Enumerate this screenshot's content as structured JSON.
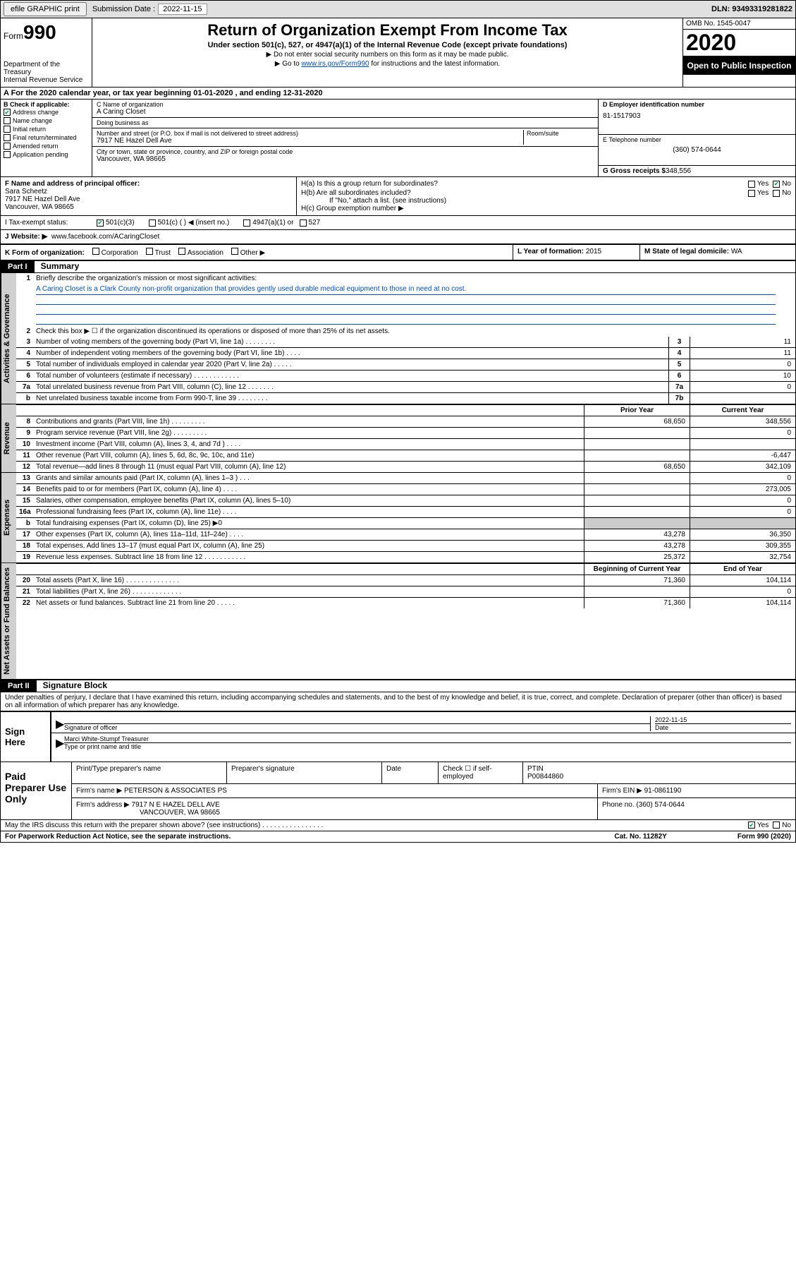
{
  "topbar": {
    "efile": "efile GRAPHIC print",
    "sub_label": "Submission Date :",
    "sub_date": "2022-11-15",
    "dln": "DLN: 93493319281822"
  },
  "header": {
    "form_word": "Form",
    "form_num": "990",
    "dept": "Department of the Treasury\nInternal Revenue Service",
    "title": "Return of Organization Exempt From Income Tax",
    "subtitle": "Under section 501(c), 527, or 4947(a)(1) of the Internal Revenue Code (except private foundations)",
    "instr1": "▶ Do not enter social security numbers on this form as it may be made public.",
    "instr2_pre": "▶ Go to ",
    "instr2_link": "www.irs.gov/Form990",
    "instr2_post": " for instructions and the latest information.",
    "omb": "OMB No. 1545-0047",
    "year": "2020",
    "inspect": "Open to Public Inspection"
  },
  "period": {
    "text_pre": "A For the 2020 calendar year, or tax year beginning ",
    "begin": "01-01-2020",
    "mid": " , and ending ",
    "end": "12-31-2020"
  },
  "section_b": {
    "header": "B Check if applicable:",
    "opts": [
      "Address change",
      "Name change",
      "Initial return",
      "Final return/terminated",
      "Amended return",
      "Application pending"
    ],
    "checked_idx": 0
  },
  "section_c": {
    "name_label": "C Name of organization",
    "name": "A Caring Closet",
    "dba_label": "Doing business as",
    "dba": "",
    "addr_label": "Number and street (or P.O. box if mail is not delivered to street address)",
    "room_label": "Room/suite",
    "addr": "7917 NE Hazel Dell Ave",
    "city_label": "City or town, state or province, country, and ZIP or foreign postal code",
    "city": "Vancouver, WA  98665"
  },
  "section_d": {
    "ein_label": "D Employer identification number",
    "ein": "81-1517903",
    "phone_label": "E Telephone number",
    "phone": "(360) 574-0644",
    "gross_label": "G Gross receipts $",
    "gross": "348,556"
  },
  "section_f": {
    "label": "F Name and address of principal officer:",
    "name": "Sara Scheetz",
    "addr1": "7917 NE Hazel Dell Ave",
    "addr2": "Vancouver, WA  98665"
  },
  "section_h": {
    "ha": "H(a)  Is this a group return for subordinates?",
    "hb": "H(b)  Are all subordinates included?",
    "hb_note": "If \"No,\" attach a list. (see instructions)",
    "hc": "H(c)  Group exemption number ▶"
  },
  "tax_status": {
    "label": "I Tax-exempt status:",
    "opts": [
      "501(c)(3)",
      "501(c) (  ) ◀ (insert no.)",
      "4947(a)(1) or",
      "527"
    ]
  },
  "website": {
    "label": "J Website: ▶",
    "value": "www.facebook.com/ACaringCloset"
  },
  "row_k": {
    "label": "K Form of organization:",
    "opts": [
      "Corporation",
      "Trust",
      "Association",
      "Other ▶"
    ]
  },
  "row_l": {
    "label": "L Year of formation:",
    "value": "2015"
  },
  "row_m": {
    "label": "M State of legal domicile:",
    "value": "WA"
  },
  "part1": {
    "header": "Part I",
    "title": "Summary",
    "line1_label": "Briefly describe the organization's mission or most significant activities:",
    "mission": "A Caring Closet is a Clark County non-profit organization that provides gently used durable medical equipment to those in need at no cost.",
    "line2": "Check this box ▶ ☐  if the organization discontinued its operations or disposed of more than 25% of its net assets.",
    "side_gov": "Activities & Governance",
    "side_rev": "Revenue",
    "side_exp": "Expenses",
    "side_net": "Net Assets or Fund Balances",
    "prior_hdr": "Prior Year",
    "current_hdr": "Current Year",
    "begin_hdr": "Beginning of Current Year",
    "end_hdr": "End of Year"
  },
  "gov_lines": [
    {
      "n": "3",
      "t": "Number of voting members of the governing body (Part VI, line 1a)   .   .   .   .   .   .   .   .",
      "box": "3",
      "v": "11"
    },
    {
      "n": "4",
      "t": "Number of independent voting members of the governing body (Part VI, line 1b)   .   .   .   .",
      "box": "4",
      "v": "11"
    },
    {
      "n": "5",
      "t": "Total number of individuals employed in calendar year 2020 (Part V, line 2a)   .   .   .   .   .",
      "box": "5",
      "v": "0"
    },
    {
      "n": "6",
      "t": "Total number of volunteers (estimate if necessary)   .   .   .   .   .   .   .   .   .   .   .   .",
      "box": "6",
      "v": "10"
    },
    {
      "n": "7a",
      "t": "Total unrelated business revenue from Part VIII, column (C), line 12   .   .   .   .   .   .   .",
      "box": "7a",
      "v": "0"
    },
    {
      "n": "b",
      "t": "Net unrelated business taxable income from Form 990-T, line 39   .   .   .   .   .   .   .   .",
      "box": "7b",
      "v": ""
    }
  ],
  "rev_lines": [
    {
      "n": "8",
      "t": "Contributions and grants (Part VIII, line 1h)   .   .   .   .   .   .   .   .   .",
      "p": "68,650",
      "c": "348,556"
    },
    {
      "n": "9",
      "t": "Program service revenue (Part VIII, line 2g)   .   .   .   .   .   .   .   .   .",
      "p": "",
      "c": "0"
    },
    {
      "n": "10",
      "t": "Investment income (Part VIII, column (A), lines 3, 4, and 7d )   .   .   .   .",
      "p": "",
      "c": ""
    },
    {
      "n": "11",
      "t": "Other revenue (Part VIII, column (A), lines 5, 6d, 8c, 9c, 10c, and 11e)",
      "p": "",
      "c": "-6,447"
    },
    {
      "n": "12",
      "t": "Total revenue—add lines 8 through 11 (must equal Part VIII, column (A), line 12)",
      "p": "68,650",
      "c": "342,109"
    }
  ],
  "exp_lines": [
    {
      "n": "13",
      "t": "Grants and similar amounts paid (Part IX, column (A), lines 1–3 )   .   .   .",
      "p": "",
      "c": "0"
    },
    {
      "n": "14",
      "t": "Benefits paid to or for members (Part IX, column (A), line 4)   .   .   .   .",
      "p": "",
      "c": "273,005"
    },
    {
      "n": "15",
      "t": "Salaries, other compensation, employee benefits (Part IX, column (A), lines 5–10)",
      "p": "",
      "c": "0"
    },
    {
      "n": "16a",
      "t": "Professional fundraising fees (Part IX, column (A), line 11e)   .   .   .   .",
      "p": "",
      "c": "0"
    },
    {
      "n": "b",
      "t": "Total fundraising expenses (Part IX, column (D), line 25) ▶0",
      "p": "GRAY",
      "c": "GRAY"
    },
    {
      "n": "17",
      "t": "Other expenses (Part IX, column (A), lines 11a–11d, 11f–24e)   .   .   .   .",
      "p": "43,278",
      "c": "36,350"
    },
    {
      "n": "18",
      "t": "Total expenses. Add lines 13–17 (must equal Part IX, column (A), line 25)",
      "p": "43,278",
      "c": "309,355"
    },
    {
      "n": "19",
      "t": "Revenue less expenses. Subtract line 18 from line 12   .   .   .   .   .   .   .   .   .   .   .",
      "p": "25,372",
      "c": "32,754"
    }
  ],
  "net_lines": [
    {
      "n": "20",
      "t": "Total assets (Part X, line 16)   .   .   .   .   .   .   .   .   .   .   .   .   .   .",
      "p": "71,360",
      "c": "104,114"
    },
    {
      "n": "21",
      "t": "Total liabilities (Part X, line 26)   .   .   .   .   .   .   .   .   .   .   .   .   .",
      "p": "",
      "c": "0"
    },
    {
      "n": "22",
      "t": "Net assets or fund balances. Subtract line 21 from line 20   .   .   .   .   .",
      "p": "71,360",
      "c": "104,114"
    }
  ],
  "part2": {
    "header": "Part II",
    "title": "Signature Block",
    "declaration": "Under penalties of perjury, I declare that I have examined this return, including accompanying schedules and statements, and to the best of my knowledge and belief, it is true, correct, and complete. Declaration of preparer (other than officer) is based on all information of which preparer has any knowledge."
  },
  "sign": {
    "label": "Sign Here",
    "sig_label": "Signature of officer",
    "date_label": "Date",
    "date": "2022-11-15",
    "name": "Marci White-Stumpf Treasurer",
    "name_label": "Type or print name and title"
  },
  "prep": {
    "label": "Paid Preparer Use Only",
    "col1": "Print/Type preparer's name",
    "col2": "Preparer's signature",
    "col3": "Date",
    "col4_a": "Check ☐ if self-employed",
    "col5_label": "PTIN",
    "col5": "P00844860",
    "firm_label": "Firm's name     ▶",
    "firm": "PETERSON & ASSOCIATES PS",
    "ein_label": "Firm's EIN ▶",
    "ein": "91-0861190",
    "addr_label": "Firm's address ▶",
    "addr1": "7917 N E HAZEL DELL AVE",
    "addr2": "VANCOUVER, WA  98665",
    "phone_label": "Phone no.",
    "phone": "(360) 574-0644"
  },
  "footer": {
    "discuss": "May the IRS discuss this return with the preparer shown above? (see instructions)   .   .   .   .   .   .   .   .   .   .   .   .   .   .   .   .",
    "paperwork": "For Paperwork Reduction Act Notice, see the separate instructions.",
    "cat": "Cat. No. 11282Y",
    "form": "Form 990 (2020)"
  }
}
